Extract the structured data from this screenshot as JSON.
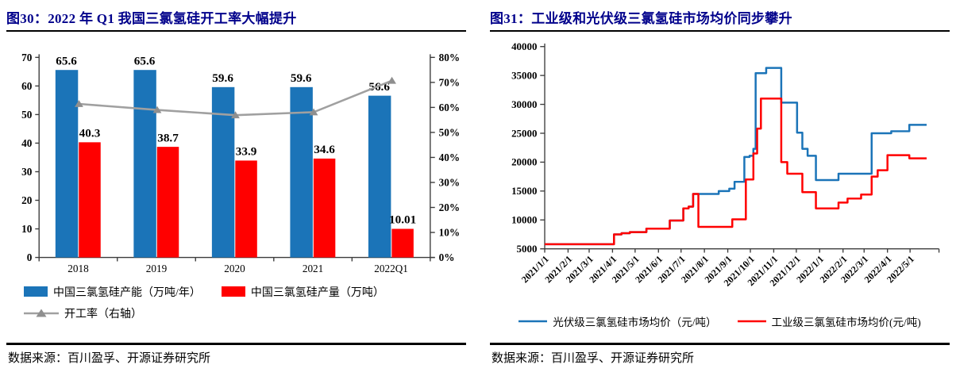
{
  "colors": {
    "title": "#00008B",
    "blue": "#1B74B8",
    "red": "#FF0000",
    "gray_line": "#A0A0A0",
    "axis": "#3c3c3c",
    "rule": "#000000"
  },
  "figures": [
    {
      "title": "图30：2022 年 Q1 我国三氯氢硅开工率大幅提升",
      "source": "数据来源：百川盈孚、开源证券研究所"
    },
    {
      "title": "图31：工业级和光伏级三氯氢硅市场均价同步攀升",
      "source": "数据来源：百川盈孚、开源证券研究所"
    }
  ],
  "chart_data": [
    {
      "type": "bar",
      "subtype": "bar+line-dual-axis",
      "categories": [
        "2018",
        "2019",
        "2020",
        "2021",
        "2022Q1"
      ],
      "series": [
        {
          "name": "中国三氯氢硅产能（万吨/年）",
          "type": "bar",
          "axis": "left",
          "color": "#1B74B8",
          "values": [
            65.6,
            65.6,
            59.6,
            59.6,
            56.6
          ],
          "labels": [
            "65.6",
            "65.6",
            "59.6",
            "59.6",
            "56.6"
          ]
        },
        {
          "name": "中国三氯氢硅产量（万吨）",
          "type": "bar",
          "axis": "left",
          "color": "#FF0000",
          "values": [
            40.3,
            38.7,
            33.9,
            34.6,
            10.01
          ],
          "labels": [
            "40.3",
            "38.7",
            "33.9",
            "34.6",
            "10.01"
          ]
        },
        {
          "name": "开工率（右轴）",
          "type": "line",
          "axis": "right",
          "color": "#A0A0A0",
          "marker": "triangle",
          "values": [
            61.4,
            59,
            56.9,
            58.1,
            70.7
          ]
        }
      ],
      "left_axis": {
        "min": 0,
        "max": 70,
        "step": 10
      },
      "right_axis": {
        "min": 0,
        "max": 80,
        "step": 10,
        "format": "percent"
      },
      "grid": false,
      "legend_position": "bottom-left"
    },
    {
      "type": "line",
      "subtype": "step-after",
      "x_unit": "days since 2021/1/1",
      "x_tick_labels": [
        "2021/1/1",
        "2021/2/1",
        "2021/3/1",
        "2021/4/1",
        "2021/5/1",
        "2021/6/1",
        "2021/7/1",
        "2021/8/1",
        "2021/9/1",
        "2021/10/1",
        "2021/11/1",
        "2021/12/1",
        "2022/1/1",
        "2022/2/1",
        "2022/3/1",
        "2022/4/1",
        "2022/5/1"
      ],
      "y_axis": {
        "min": 5000,
        "max": 40000,
        "step": 5000,
        "unit": "元/吨"
      },
      "x_end_day": 507,
      "series": [
        {
          "name": "光伏级三氯氢硅市场均价（元/吨）",
          "color": "#1B74B8",
          "points": [
            [
              0,
              5800
            ],
            [
              92,
              7500
            ],
            [
              102,
              7700
            ],
            [
              113,
              7900
            ],
            [
              135,
              8500
            ],
            [
              166,
              9900
            ],
            [
              184,
              12000
            ],
            [
              191,
              12300
            ],
            [
              197,
              14500
            ],
            [
              231,
              15000
            ],
            [
              245,
              15400
            ],
            [
              252,
              16600
            ],
            [
              265,
              20900
            ],
            [
              272,
              21100
            ],
            [
              277,
              22300
            ],
            [
              280,
              35400
            ],
            [
              294,
              36300
            ],
            [
              314,
              30300
            ],
            [
              335,
              25100
            ],
            [
              342,
              22300
            ],
            [
              349,
              21100
            ],
            [
              360,
              16900
            ],
            [
              390,
              18000
            ],
            [
              434,
              25000
            ],
            [
              460,
              25350
            ],
            [
              484,
              26450
            ],
            [
              507,
              26450
            ]
          ]
        },
        {
          "name": "工业级三氯氢硅市场均价(元/吨)",
          "color": "#FF0000",
          "points": [
            [
              0,
              5800
            ],
            [
              92,
              7500
            ],
            [
              102,
              7700
            ],
            [
              113,
              7900
            ],
            [
              135,
              8500
            ],
            [
              166,
              9900
            ],
            [
              184,
              12000
            ],
            [
              191,
              12300
            ],
            [
              197,
              14500
            ],
            [
              204,
              8800
            ],
            [
              249,
              10100
            ],
            [
              267,
              17000
            ],
            [
              277,
              21500
            ],
            [
              282,
              25800
            ],
            [
              287,
              31000
            ],
            [
              314,
              20000
            ],
            [
              322,
              18000
            ],
            [
              342,
              14800
            ],
            [
              360,
              12000
            ],
            [
              390,
              13000
            ],
            [
              402,
              13700
            ],
            [
              420,
              14400
            ],
            [
              434,
              17500
            ],
            [
              442,
              18600
            ],
            [
              455,
              21200
            ],
            [
              484,
              20650
            ],
            [
              507,
              20650
            ]
          ]
        }
      ],
      "grid": false,
      "legend_position": "bottom-center"
    }
  ]
}
